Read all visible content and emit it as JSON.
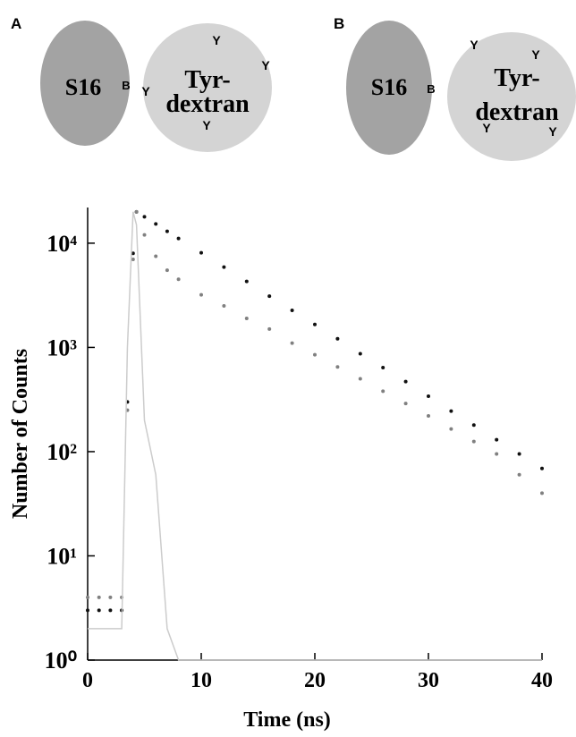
{
  "diagrams": [
    {
      "label": "A",
      "left": "S16",
      "bond": "B",
      "right": [
        "Tyr-",
        "dextran"
      ],
      "tags": [
        "Y",
        "Y",
        "Y",
        "Y"
      ]
    },
    {
      "label": "B",
      "left": "S16",
      "bond": "B",
      "right": [
        "Tyr-",
        "dextran"
      ],
      "tags": [
        "Y",
        "Y",
        "Y",
        "Y"
      ]
    }
  ],
  "chart_data": {
    "type": "line",
    "xlabel": "Time (ns)",
    "ylabel": "Number of Counts",
    "log_y": true,
    "x": [
      0,
      1,
      2,
      3,
      3.5,
      4,
      4.3,
      5,
      6,
      7,
      8,
      10,
      12,
      14,
      16,
      18,
      20,
      22,
      24,
      26,
      28,
      30,
      32,
      34,
      36,
      38,
      40
    ],
    "series": [
      {
        "color": "#111111",
        "mode": "dots",
        "values": [
          3,
          3,
          3,
          3,
          300,
          8000,
          20000,
          17900,
          15300,
          13000,
          11100,
          8100,
          5900,
          4300,
          3100,
          2270,
          1660,
          1210,
          870,
          640,
          470,
          340,
          245,
          180,
          130,
          95,
          69
        ]
      },
      {
        "color": "#808080",
        "mode": "dots",
        "values": [
          4,
          4,
          4,
          4,
          250,
          7000,
          20000,
          12000,
          7500,
          5500,
          4500,
          3200,
          2500,
          1900,
          1500,
          1100,
          850,
          650,
          500,
          380,
          290,
          220,
          165,
          125,
          95,
          60,
          40
        ]
      },
      {
        "color": "#cccccc",
        "mode": "line",
        "values": [
          2,
          2,
          2,
          2,
          1000,
          20000,
          15000,
          200,
          60,
          2,
          1,
          1,
          1,
          1,
          1,
          1,
          1,
          1,
          1,
          1,
          1,
          1,
          1,
          1,
          1,
          1,
          1
        ]
      }
    ],
    "xlim": [
      0,
      40
    ],
    "xticks": [
      0,
      10,
      20,
      30,
      40
    ],
    "ylim": [
      1,
      22000
    ],
    "yticks": [
      {
        "value": 1,
        "label": "10⁰"
      },
      {
        "value": 10,
        "label": "10¹"
      },
      {
        "value": 100,
        "label": "10²"
      },
      {
        "value": 1000,
        "label": "10³"
      },
      {
        "value": 10000,
        "label": "10⁴"
      }
    ]
  }
}
